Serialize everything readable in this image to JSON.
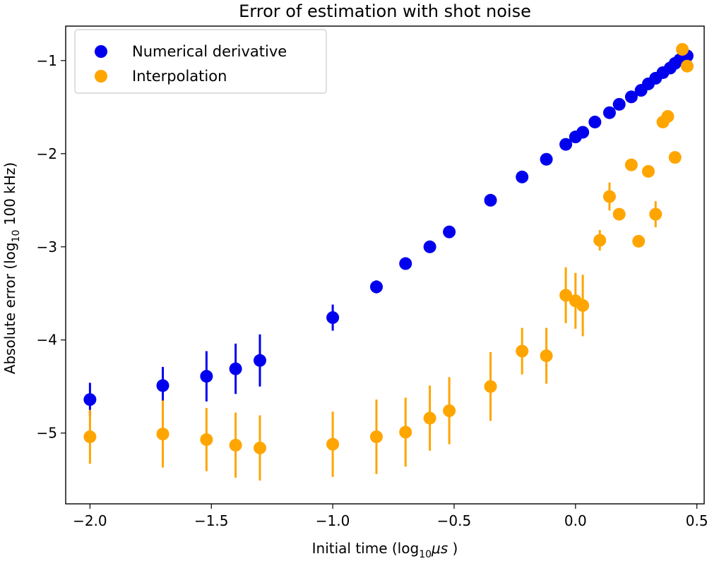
{
  "chart_data": {
    "type": "scatter",
    "title": "Error of estimation with shot noise",
    "xlabel": {
      "prefix": "Initial time (log",
      "sub": "10",
      "unit": "μs",
      "suffix": " )"
    },
    "ylabel": {
      "prefix": "Absolute error (log",
      "sub": "10",
      "suffix": " 100 kHz)"
    },
    "xlim": [
      -2.1,
      0.53
    ],
    "ylim": [
      -5.76,
      -0.63
    ],
    "xticks": [
      {
        "value": -2.0,
        "label": "−2.0"
      },
      {
        "value": -1.5,
        "label": "−1.5"
      },
      {
        "value": -1.0,
        "label": "−1.0"
      },
      {
        "value": -0.5,
        "label": "−0.5"
      },
      {
        "value": 0.0,
        "label": "0.0"
      },
      {
        "value": 0.5,
        "label": "0.5"
      }
    ],
    "yticks": [
      {
        "value": -5,
        "label": "−5"
      },
      {
        "value": -4,
        "label": "−4"
      },
      {
        "value": -3,
        "label": "−3"
      },
      {
        "value": -2,
        "label": "−2"
      },
      {
        "value": -1,
        "label": "−1"
      }
    ],
    "grid": false,
    "legend_position": "top-left",
    "series": [
      {
        "name": "Numerical derivative",
        "color": "#0000ee",
        "points": [
          {
            "x": -2.0,
            "y": -4.64,
            "err": 0.18
          },
          {
            "x": -1.7,
            "y": -4.49,
            "err": 0.2
          },
          {
            "x": -1.52,
            "y": -4.39,
            "err": 0.27
          },
          {
            "x": -1.4,
            "y": -4.31,
            "err": 0.27
          },
          {
            "x": -1.3,
            "y": -4.22,
            "err": 0.28
          },
          {
            "x": -1.0,
            "y": -3.76,
            "err": 0.14
          },
          {
            "x": -0.82,
            "y": -3.43,
            "err": 0.07
          },
          {
            "x": -0.7,
            "y": -3.18,
            "err": 0
          },
          {
            "x": -0.6,
            "y": -3.0,
            "err": 0
          },
          {
            "x": -0.52,
            "y": -2.84,
            "err": 0
          },
          {
            "x": -0.35,
            "y": -2.5,
            "err": 0
          },
          {
            "x": -0.22,
            "y": -2.25,
            "err": 0
          },
          {
            "x": -0.12,
            "y": -2.06,
            "err": 0
          },
          {
            "x": -0.04,
            "y": -1.9,
            "err": 0
          },
          {
            "x": 0.0,
            "y": -1.82,
            "err": 0
          },
          {
            "x": 0.03,
            "y": -1.77,
            "err": 0
          },
          {
            "x": 0.08,
            "y": -1.66,
            "err": 0
          },
          {
            "x": 0.14,
            "y": -1.56,
            "err": 0
          },
          {
            "x": 0.18,
            "y": -1.47,
            "err": 0
          },
          {
            "x": 0.23,
            "y": -1.39,
            "err": 0
          },
          {
            "x": 0.27,
            "y": -1.32,
            "err": 0
          },
          {
            "x": 0.3,
            "y": -1.25,
            "err": 0
          },
          {
            "x": 0.33,
            "y": -1.19,
            "err": 0
          },
          {
            "x": 0.36,
            "y": -1.13,
            "err": 0
          },
          {
            "x": 0.39,
            "y": -1.08,
            "err": 0
          },
          {
            "x": 0.41,
            "y": -1.03,
            "err": 0
          },
          {
            "x": 0.43,
            "y": -0.99,
            "err": 0
          },
          {
            "x": 0.46,
            "y": -0.95,
            "err": 0
          }
        ]
      },
      {
        "name": "Interpolation",
        "color": "#ffa500",
        "points": [
          {
            "x": -2.0,
            "y": -5.04,
            "err": 0.29
          },
          {
            "x": -1.7,
            "y": -5.01,
            "err": 0.36
          },
          {
            "x": -1.52,
            "y": -5.07,
            "err": 0.34
          },
          {
            "x": -1.4,
            "y": -5.13,
            "err": 0.35
          },
          {
            "x": -1.3,
            "y": -5.16,
            "err": 0.35
          },
          {
            "x": -1.0,
            "y": -5.12,
            "err": 0.35
          },
          {
            "x": -0.82,
            "y": -5.04,
            "err": 0.4
          },
          {
            "x": -0.7,
            "y": -4.99,
            "err": 0.37
          },
          {
            "x": -0.6,
            "y": -4.84,
            "err": 0.35
          },
          {
            "x": -0.52,
            "y": -4.76,
            "err": 0.36
          },
          {
            "x": -0.35,
            "y": -4.5,
            "err": 0.37
          },
          {
            "x": -0.22,
            "y": -4.12,
            "err": 0.25
          },
          {
            "x": -0.12,
            "y": -4.17,
            "err": 0.3
          },
          {
            "x": -0.04,
            "y": -3.52,
            "err": 0.3
          },
          {
            "x": 0.0,
            "y": -3.58,
            "err": 0.3
          },
          {
            "x": 0.03,
            "y": -3.63,
            "err": 0.33
          },
          {
            "x": 0.1,
            "y": -2.93,
            "err": 0.11
          },
          {
            "x": 0.14,
            "y": -2.46,
            "err": 0.15
          },
          {
            "x": 0.18,
            "y": -2.65,
            "err": 0
          },
          {
            "x": 0.23,
            "y": -2.12,
            "err": 0
          },
          {
            "x": 0.26,
            "y": -2.94,
            "err": 0
          },
          {
            "x": 0.3,
            "y": -2.19,
            "err": 0
          },
          {
            "x": 0.33,
            "y": -2.65,
            "err": 0.14
          },
          {
            "x": 0.36,
            "y": -1.66,
            "err": 0
          },
          {
            "x": 0.38,
            "y": -1.6,
            "err": 0
          },
          {
            "x": 0.41,
            "y": -2.04,
            "err": 0
          },
          {
            "x": 0.44,
            "y": -0.88,
            "err": 0
          },
          {
            "x": 0.46,
            "y": -1.06,
            "err": 0
          }
        ]
      }
    ]
  }
}
